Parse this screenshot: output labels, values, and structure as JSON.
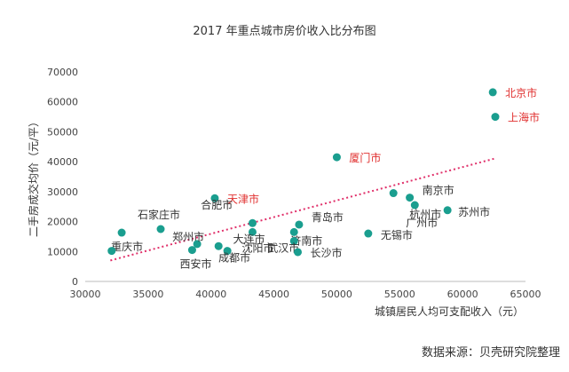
{
  "chart_data": {
    "type": "scatter",
    "title": "2017 年重点城市房价收入比分布图",
    "xlabel": "城镇居民人均可支配收入（元）",
    "ylabel": "二手房成交均价（元/平）",
    "source": "数据来源：贝壳研究院整理",
    "xlim": [
      30000,
      65000
    ],
    "ylim": [
      0,
      70000
    ],
    "xticks": [
      30000,
      35000,
      40000,
      45000,
      50000,
      55000,
      60000,
      65000
    ],
    "yticks": [
      0,
      10000,
      20000,
      30000,
      40000,
      50000,
      60000,
      70000
    ],
    "point_color": "#1a9e8f",
    "highlight_color": "#e0302f",
    "trend_color": "#e0306a",
    "trendline": [
      [
        32000,
        7000
      ],
      [
        62500,
        41000
      ]
    ],
    "points": [
      {
        "name": "北京市",
        "x": 62400,
        "y": 63200,
        "highlight": true
      },
      {
        "name": "上海市",
        "x": 62600,
        "y": 55000,
        "highlight": true
      },
      {
        "name": "厦门市",
        "x": 50000,
        "y": 41500,
        "highlight": true
      },
      {
        "name": "天津市",
        "x": 40300,
        "y": 27800,
        "highlight": true
      },
      {
        "name": "南京市",
        "x": 55800,
        "y": 28000
      },
      {
        "name": "苏州市",
        "x": 58800,
        "y": 23800
      },
      {
        "name": "广州市",
        "x": 56200,
        "y": 25500
      },
      {
        "name": "杭州市",
        "x": 54500,
        "y": 29500
      },
      {
        "name": "无锡市",
        "x": 52500,
        "y": 16000
      },
      {
        "name": "青岛市",
        "x": 47000,
        "y": 19000
      },
      {
        "name": "济南市",
        "x": 46600,
        "y": 16500
      },
      {
        "name": "武汉市",
        "x": 46600,
        "y": 13500
      },
      {
        "name": "长沙市",
        "x": 46900,
        "y": 9800
      },
      {
        "name": "沈阳市",
        "x": 43300,
        "y": 19500
      },
      {
        "name": "大连市",
        "x": 43300,
        "y": 16500
      },
      {
        "name": "合肥市",
        "x": 40600,
        "y": 11800
      },
      {
        "name": "成都市",
        "x": 41300,
        "y": 10200
      },
      {
        "name": "西安市",
        "x": 38500,
        "y": 10500
      },
      {
        "name": "郑州市",
        "x": 38900,
        "y": 12500
      },
      {
        "name": "石家庄市",
        "x": 36000,
        "y": 17500
      },
      {
        "name": "重庆市",
        "x": 32900,
        "y": 16300
      },
      {
        "name": "",
        "x": 32100,
        "y": 10200
      }
    ]
  }
}
